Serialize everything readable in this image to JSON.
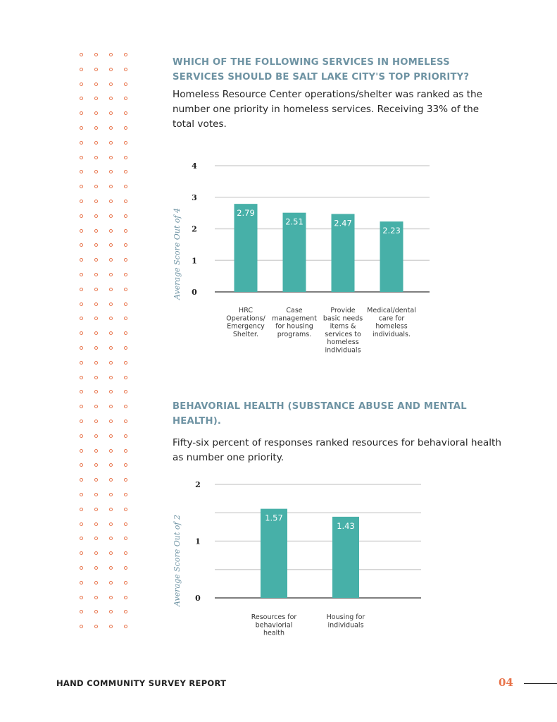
{
  "section1": {
    "heading": "WHICH OF THE FOLLOWING SERVICES IN HOMELESS SERVICES SHOULD BE SALT LAKE CITY'S TOP PRIORITY?",
    "paragraph": "Homeless Resource Center operations/shelter was ranked as the number one priority in homeless services. Receiving  33% of the total votes."
  },
  "section2": {
    "heading": "BEHAVORIAL HEALTH (SUBSTANCE ABUSE AND MENTAL HEALTH).",
    "paragraph": "Fifty-six percent of responses ranked resources for behavioral health as number one priority."
  },
  "colors": {
    "bar": "#47b0a8",
    "accent": "#e8734a",
    "heading": "#6e93a3",
    "grid": "#d4d4d4"
  },
  "chart_data": [
    {
      "type": "bar",
      "title": "",
      "xlabel": "",
      "ylabel": "Average Score Out of 4",
      "ylim": [
        0,
        4
      ],
      "yticks": [
        "0",
        "1",
        "2",
        "3",
        "4"
      ],
      "grid": true,
      "categories": [
        "HRC Operations/ Emergency Shelter.",
        "Case management for housing programs.",
        "Provide basic needs items & services to homeless individuals",
        "Medical/dental care for homeless individuals."
      ],
      "category_lines": [
        [
          "HRC",
          "Operations/",
          "Emergency",
          "Shelter."
        ],
        [
          "Case",
          "management",
          "for housing",
          "programs."
        ],
        [
          "Provide",
          "basic needs",
          "items &",
          "services to",
          "homeless",
          "individuals"
        ],
        [
          "Medical/dental",
          "care for",
          "homeless",
          "individuals."
        ]
      ],
      "values": [
        2.79,
        2.51,
        2.47,
        2.23
      ],
      "value_labels": [
        "2.79",
        "2.51",
        "2.47",
        "2.23"
      ]
    },
    {
      "type": "bar",
      "title": "",
      "xlabel": "",
      "ylabel": "Average Score Out of 2",
      "ylim": [
        0,
        2
      ],
      "yticks": [
        "0",
        "1",
        "2"
      ],
      "grid": true,
      "categories": [
        "Resources for behaviorial health",
        "Housing for individuals"
      ],
      "category_lines": [
        [
          "Resources for",
          "behaviorial",
          "health"
        ],
        [
          "Housing for",
          "individuals"
        ]
      ],
      "values": [
        1.57,
        1.43
      ],
      "value_labels": [
        "1.57",
        "1.43"
      ]
    }
  ],
  "footer": {
    "title": "HAND COMMUNITY SURVEY REPORT",
    "page_number": "04"
  }
}
